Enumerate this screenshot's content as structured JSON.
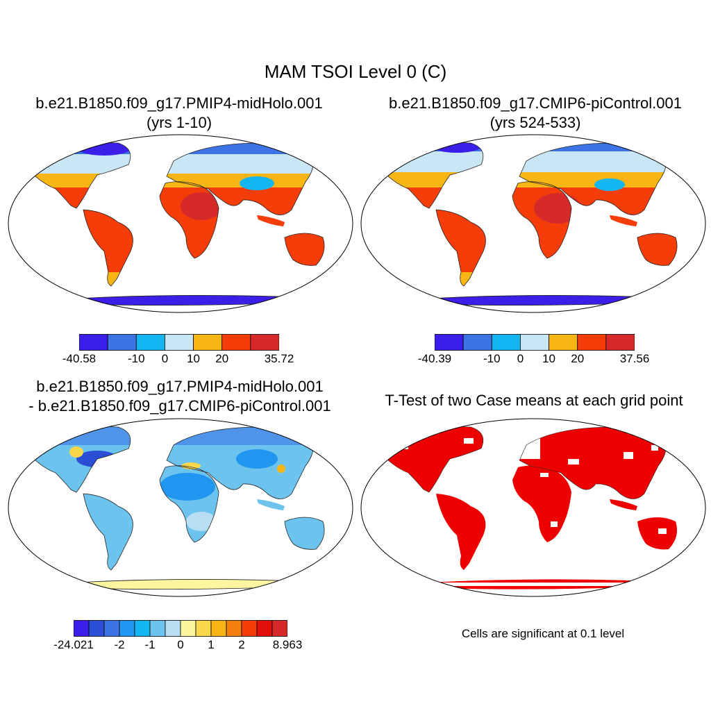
{
  "title": "MAM TSOI Level 0 (C)",
  "panels": {
    "top_left": {
      "title_line1": "b.e21.B1850.f09_g17.PMIP4-midHolo.001",
      "title_line2": "(yrs 1-10)",
      "colorbar": {
        "colors": [
          "#3b1ee8",
          "#3c74e6",
          "#14b6f2",
          "#c8e6f5",
          "#f8b614",
          "#f53d0a",
          "#d62a2a"
        ],
        "labels": [
          "-40.58",
          "-10",
          "0",
          "10",
          "20",
          "35.72"
        ]
      }
    },
    "top_right": {
      "title_line1": "b.e21.B1850.f09_g17.CMIP6-piControl.001",
      "title_line2": "(yrs 524-533)",
      "colorbar": {
        "colors": [
          "#3b1ee8",
          "#3c74e6",
          "#14b6f2",
          "#c8e6f5",
          "#f8b614",
          "#f53d0a",
          "#d62a2a"
        ],
        "labels": [
          "-40.39",
          "-10",
          "0",
          "10",
          "20",
          "37.56"
        ]
      }
    },
    "bottom_left": {
      "title_line1": "b.e21.B1850.f09_g17.PMIP4-midHolo.001",
      "title_line2": "- b.e21.B1850.f09_g17.CMIP6-piControl.001",
      "colorbar": {
        "colors": [
          "#3b1ee8",
          "#2a4fd6",
          "#3c74e6",
          "#2196f0",
          "#14b6f2",
          "#6cc4ee",
          "#b7def3",
          "#fdf5a0",
          "#f8d84a",
          "#f8b614",
          "#f57e0f",
          "#f53d0a",
          "#e2100a",
          "#d62a2a"
        ],
        "labels": [
          "-24.021",
          "-2",
          "-1",
          "0",
          "1",
          "2",
          "8.963"
        ]
      }
    },
    "bottom_right": {
      "title": "T-Test of two Case means at each grid point",
      "note": "Cells are significant at 0.1 level"
    }
  }
}
